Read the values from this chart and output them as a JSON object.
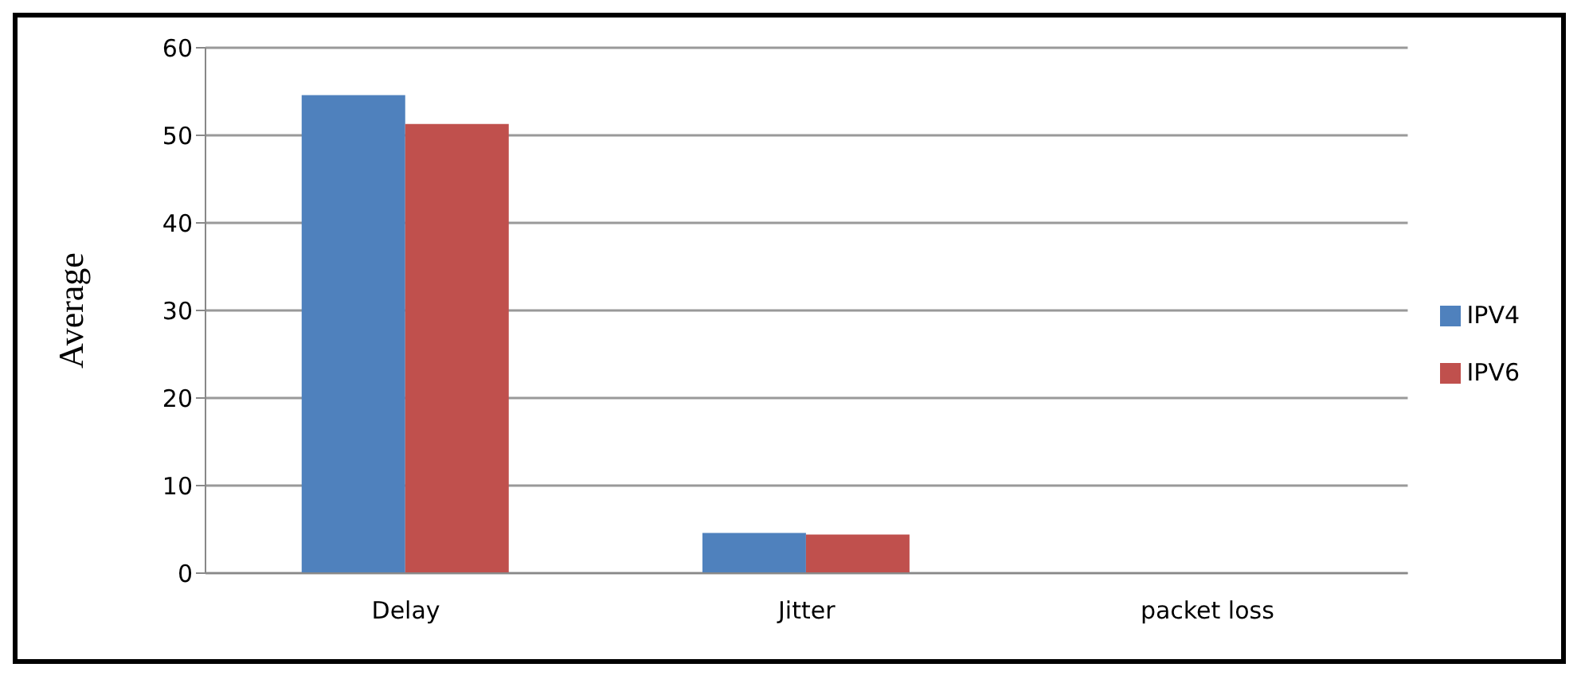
{
  "chart_data": {
    "type": "bar",
    "ylabel": "Average",
    "categories": [
      "Delay",
      "Jitter",
      "packet loss"
    ],
    "series": [
      {
        "name": "IPV4",
        "color": "#4f81bd",
        "values": [
          54.6,
          4.6,
          0
        ]
      },
      {
        "name": "IPV6",
        "color": "#c0504d",
        "values": [
          51.3,
          4.4,
          0
        ]
      }
    ],
    "ylim": [
      0,
      60
    ],
    "yticks": [
      0,
      10,
      20,
      30,
      40,
      50,
      60
    ],
    "grid": "y",
    "legend": "right"
  }
}
